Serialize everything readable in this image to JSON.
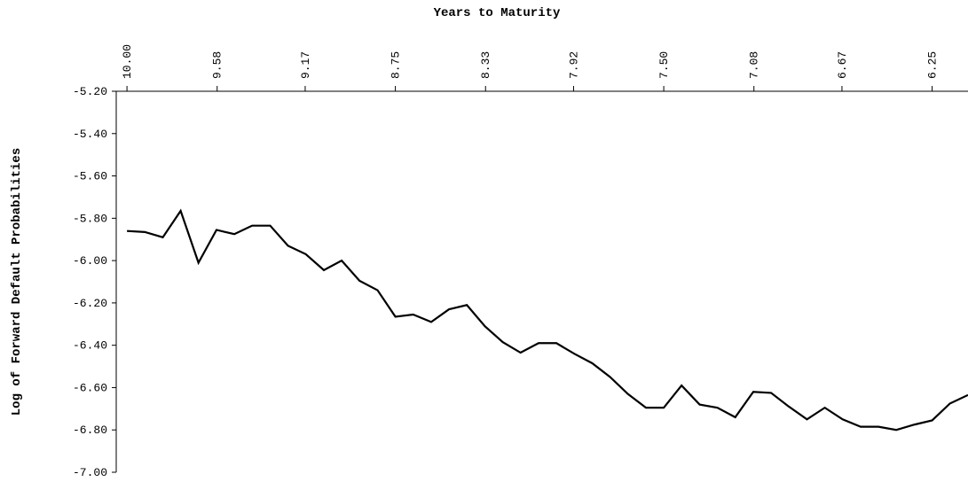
{
  "chart_data": {
    "type": "line",
    "x_label": "Years to Maturity",
    "y_label": "Log of Forward Default Probabilities",
    "x": [
      10.0,
      9.917,
      9.833,
      9.75,
      9.667,
      9.583,
      9.5,
      9.417,
      9.333,
      9.25,
      9.167,
      9.083,
      9.0,
      8.917,
      8.833,
      8.75,
      8.667,
      8.583,
      8.5,
      8.417,
      8.333,
      8.25,
      8.167,
      8.083,
      8.0,
      7.917,
      7.833,
      7.75,
      7.667,
      7.583,
      7.5,
      7.417,
      7.333,
      7.25,
      7.167,
      7.083,
      7.0,
      6.917,
      6.833,
      6.75,
      6.667,
      6.583,
      6.5,
      6.417,
      6.333,
      6.25,
      6.167,
      6.083
    ],
    "series": [
      {
        "color": "#000000",
        "values": [
          -5.86,
          -5.865,
          -5.89,
          -5.765,
          -6.01,
          -5.855,
          -5.875,
          -5.835,
          -5.835,
          -5.93,
          -5.97,
          -6.045,
          -6.0,
          -6.095,
          -6.14,
          -6.265,
          -6.255,
          -6.29,
          -6.23,
          -6.21,
          -6.31,
          -6.385,
          -6.435,
          -6.39,
          -6.39,
          -6.44,
          -6.485,
          -6.55,
          -6.63,
          -6.695,
          -6.695,
          -6.59,
          -6.68,
          -6.695,
          -6.74,
          -6.62,
          -6.625,
          -6.69,
          -6.75,
          -6.695,
          -6.75,
          -6.785,
          -6.785,
          -6.8,
          -6.775,
          -6.755,
          -6.675,
          -6.635
        ]
      }
    ],
    "xlim": [
      10.05,
      6.083
    ],
    "xticks": [
      {
        "value": 10,
        "label": "10.00"
      },
      9.58,
      9.17,
      8.75,
      8.33,
      7.92,
      {
        "value": 7.5,
        "label": "7.50"
      },
      7.08,
      6.67,
      6.25
    ],
    "ylim": [
      -5.2,
      -7.0
    ],
    "yticks": [
      {
        "value": -5.2,
        "label": "-5.20"
      },
      {
        "value": -5.4,
        "label": "-5.40"
      },
      {
        "value": -5.6,
        "label": "-5.60"
      },
      {
        "value": -5.8,
        "label": "-5.80"
      },
      {
        "value": -6.0,
        "label": "-6.00"
      },
      {
        "value": -6.2,
        "label": "-6.20"
      },
      {
        "value": -6.4,
        "label": "-6.40"
      },
      {
        "value": -6.6,
        "label": "-6.60"
      },
      {
        "value": -6.8,
        "label": "-6.80"
      },
      {
        "value": -7.0,
        "label": "-7.00"
      }
    ],
    "x_axis_position": "top"
  }
}
